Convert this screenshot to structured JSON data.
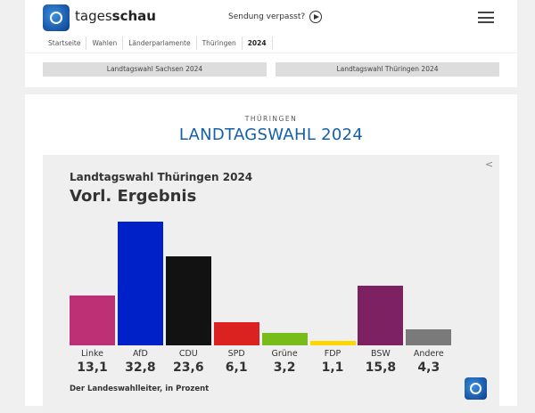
{
  "header": {
    "brand_light": "tages",
    "brand_bold": "schau",
    "missed": "Sendung verpasst?"
  },
  "breadcrumb": [
    "Startseite",
    "Wahlen",
    "Länderparlamente",
    "Thüringen",
    "2024"
  ],
  "tabs": [
    "Landtagswahl Sachsen 2024",
    "Landtagswahl Thüringen 2024"
  ],
  "section": {
    "kicker": "THÜRINGEN",
    "title": "LANDTAGSWAHL 2024"
  },
  "chart_data": {
    "type": "bar",
    "title": "Landtagswahl Thüringen 2024",
    "subtitle": "Vorl. Ergebnis",
    "categories": [
      "Linke",
      "AfD",
      "CDU",
      "SPD",
      "Grüne",
      "FDP",
      "BSW",
      "Andere"
    ],
    "values": [
      13.1,
      32.8,
      23.6,
      6.1,
      3.2,
      1.1,
      15.8,
      4.3
    ],
    "value_labels": [
      "13,1",
      "32,8",
      "23,6",
      "6,1",
      "3,2",
      "1,1",
      "15,8",
      "4,3"
    ],
    "colors": [
      "#be3075",
      "#0021c8",
      "#121212",
      "#dc2121",
      "#78bc1b",
      "#ffd600",
      "#7d2163",
      "#7a7a7a"
    ],
    "source": "Der Landeswahlleiter, in Prozent"
  }
}
